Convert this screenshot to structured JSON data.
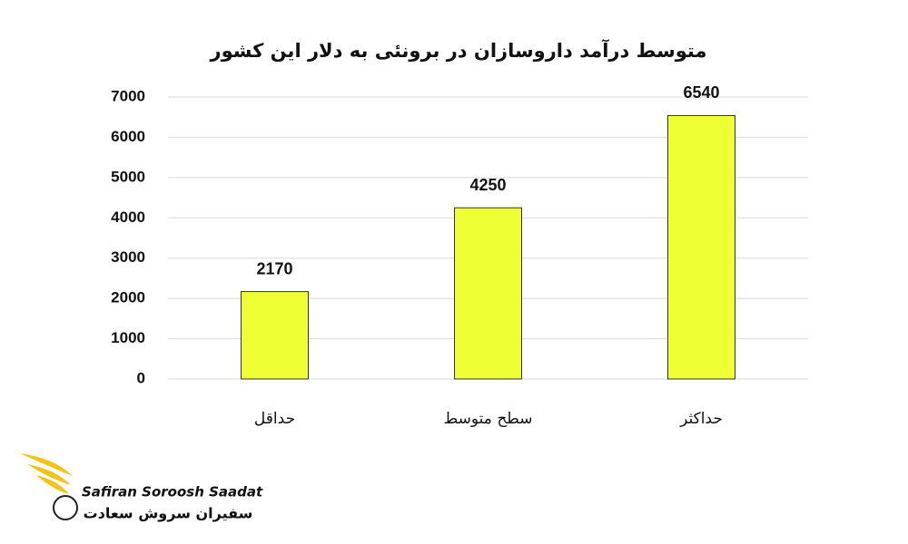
{
  "chart_data": {
    "type": "bar",
    "title": "متوسط درآمد داروسازان  در برونئی به دلار این کشور",
    "categories": [
      "حداقل",
      "سطح متوسط",
      "حداکثر"
    ],
    "values": [
      2170,
      4250,
      6540
    ],
    "color": "#eeff33",
    "ylim": [
      0,
      7000
    ],
    "yticks": [
      0,
      1000,
      2000,
      3000,
      4000,
      5000,
      6000,
      7000
    ],
    "grid": true
  },
  "brand": {
    "name_en": "Safiran Soroosh Saadat",
    "name_fa": "سفیران سروش سعادت"
  }
}
